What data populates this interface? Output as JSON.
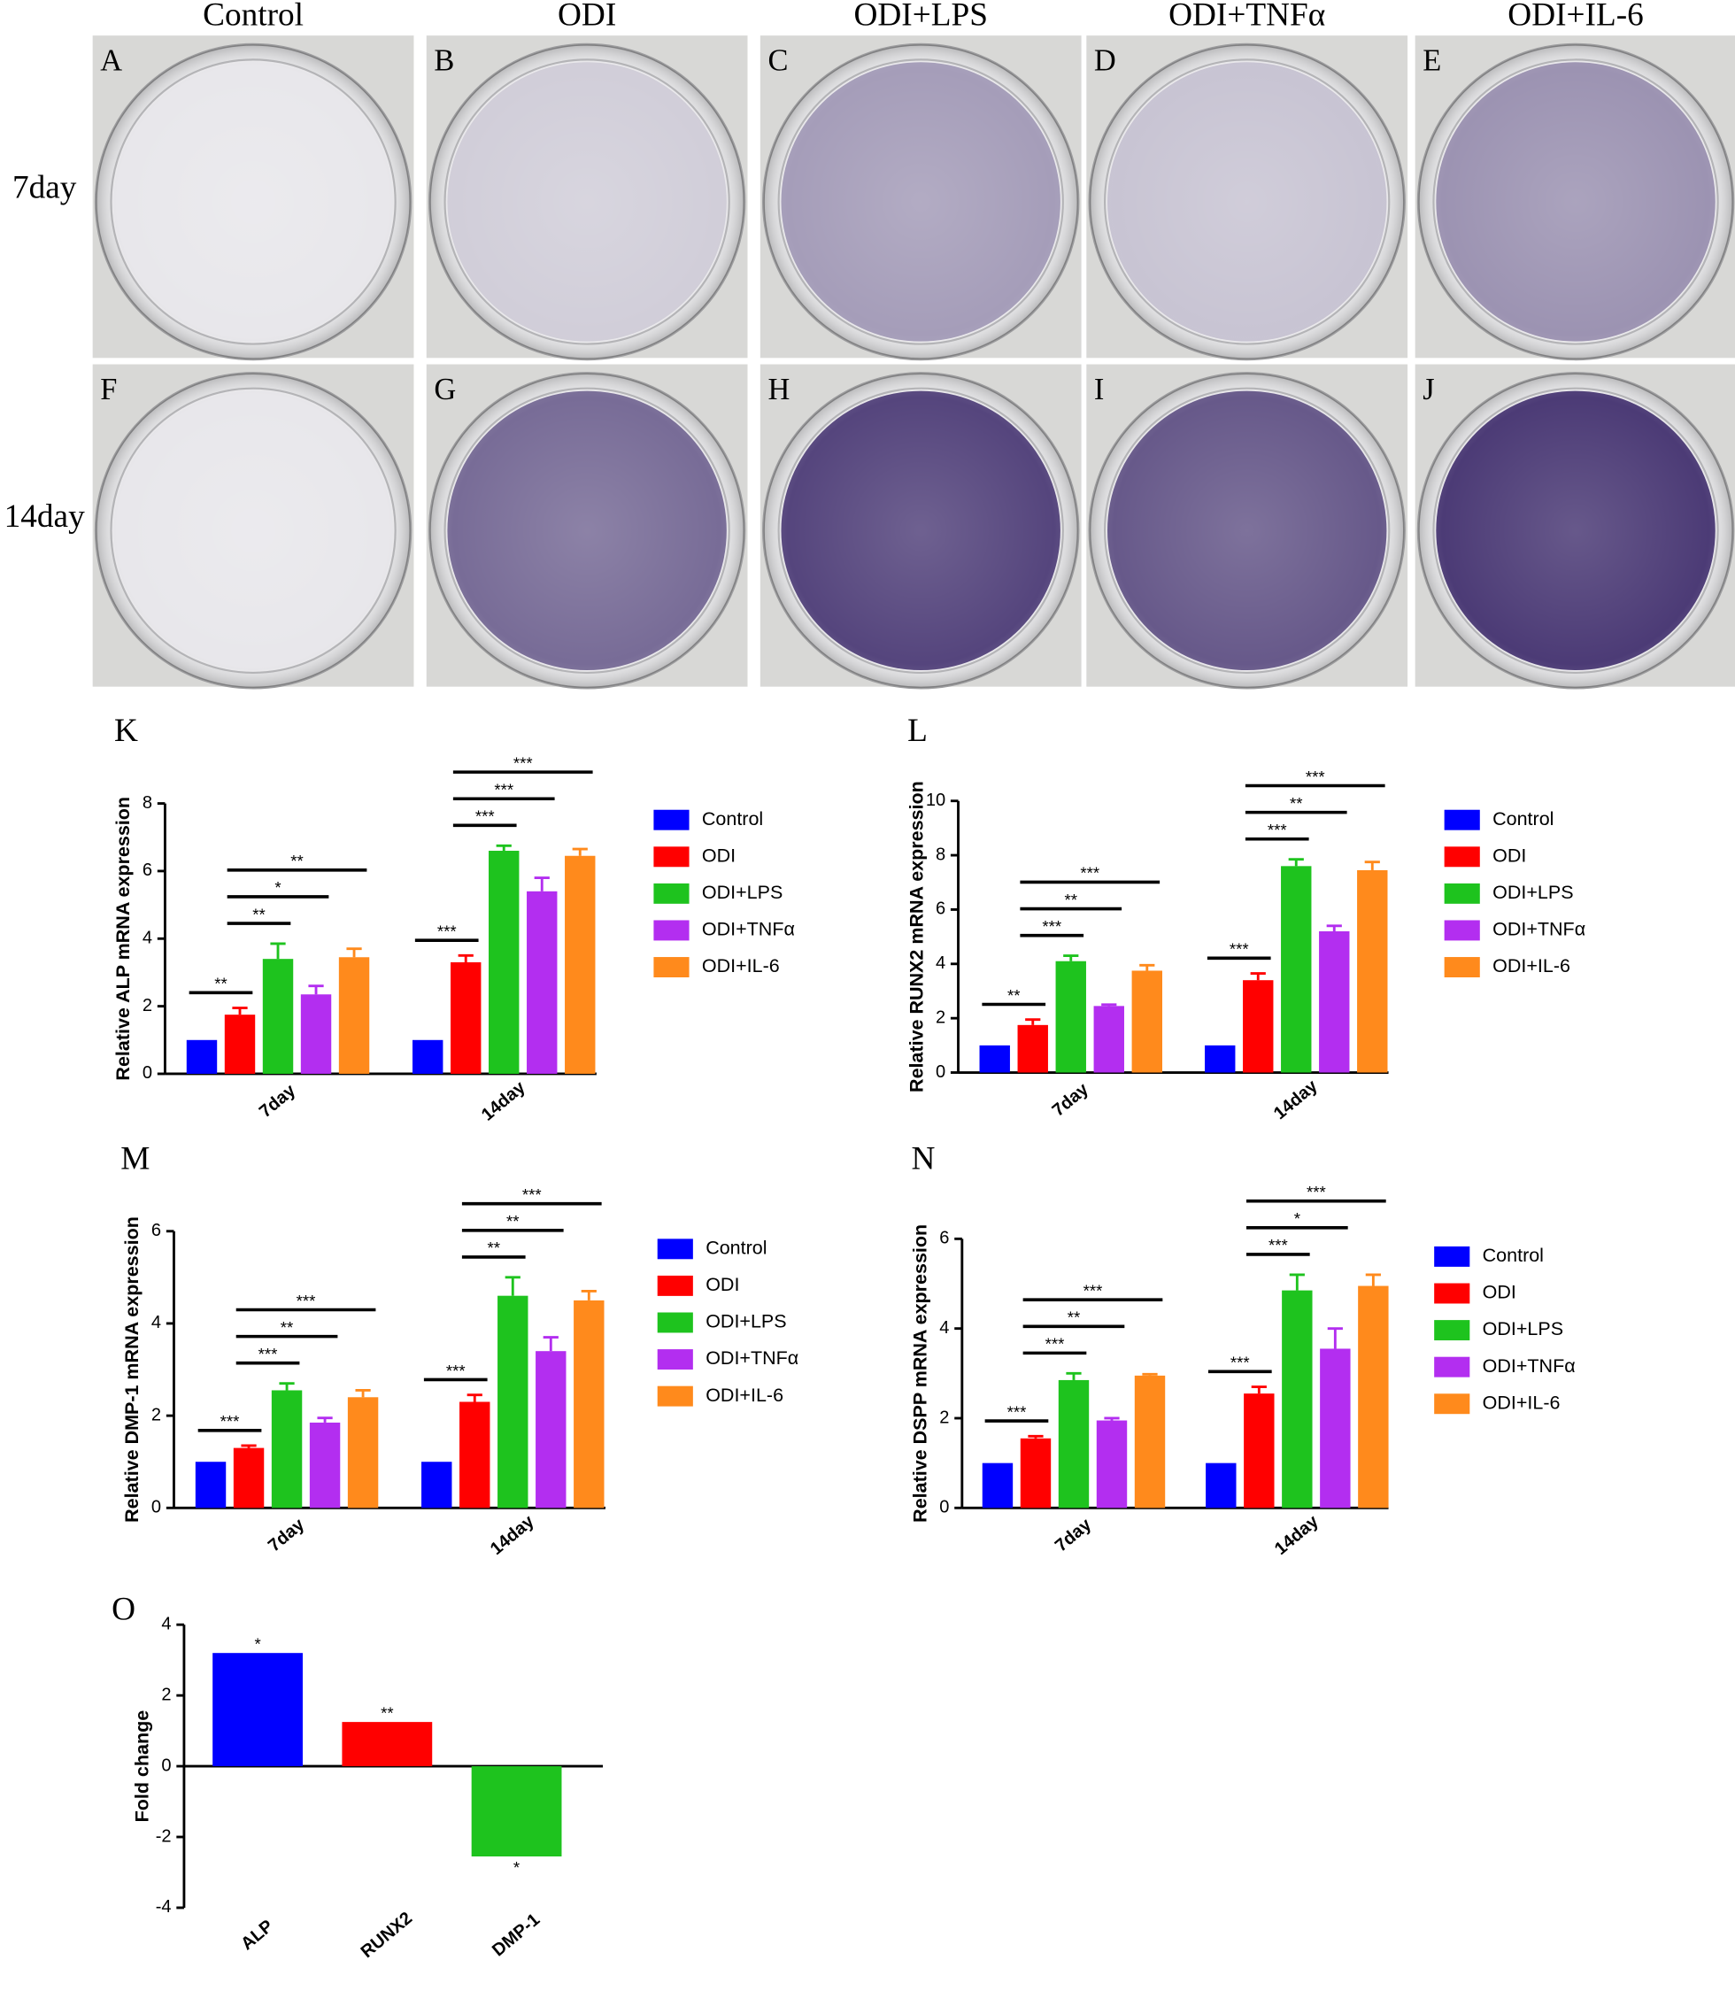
{
  "figure": {
    "columns": [
      "Control",
      "ODI",
      "ODI+LPS",
      "ODI+TNFα",
      "ODI+IL-6"
    ],
    "rows": [
      "7day",
      "14day"
    ],
    "panels": [
      "A",
      "B",
      "C",
      "D",
      "E",
      "F",
      "G",
      "H",
      "I",
      "J"
    ]
  },
  "chart_data": [
    {
      "panel": "K",
      "type": "bar",
      "ylabel": "Relative ALP mRNA expression",
      "categories": [
        "7day",
        "14day"
      ],
      "ylim": [
        0,
        8
      ],
      "yticks": [
        0,
        2,
        4,
        6,
        8
      ],
      "series": [
        {
          "name": "Control",
          "color": "#0000ff",
          "values": [
            1.0,
            1.0
          ],
          "errors": [
            0,
            0
          ]
        },
        {
          "name": "ODI",
          "color": "#ff0000",
          "values": [
            1.75,
            3.3
          ],
          "errors": [
            0.2,
            0.2
          ]
        },
        {
          "name": "ODI+LPS",
          "color": "#1ec31e",
          "values": [
            3.4,
            6.6
          ],
          "errors": [
            0.45,
            0.15
          ]
        },
        {
          "name": "ODI+TNFα",
          "color": "#b32ef0",
          "values": [
            2.35,
            5.4
          ],
          "errors": [
            0.25,
            0.4
          ]
        },
        {
          "name": "ODI+IL-6",
          "color": "#ff8a1c",
          "values": [
            3.45,
            6.45
          ],
          "errors": [
            0.25,
            0.2
          ]
        }
      ],
      "significance": [
        {
          "category": 0,
          "from": 0,
          "to": 1,
          "text": "**"
        },
        {
          "category": 0,
          "from": 1,
          "to": 2,
          "text": "**"
        },
        {
          "category": 0,
          "from": 1,
          "to": 3,
          "text": "*"
        },
        {
          "category": 0,
          "from": 1,
          "to": 4,
          "text": "**"
        },
        {
          "category": 1,
          "from": 0,
          "to": 1,
          "text": "***"
        },
        {
          "category": 1,
          "from": 1,
          "to": 2,
          "text": "***"
        },
        {
          "category": 1,
          "from": 1,
          "to": 3,
          "text": "***"
        },
        {
          "category": 1,
          "from": 1,
          "to": 4,
          "text": "***"
        }
      ]
    },
    {
      "panel": "L",
      "type": "bar",
      "ylabel": "Relative RUNX2 mRNA expression",
      "categories": [
        "7day",
        "14day"
      ],
      "ylim": [
        0,
        10
      ],
      "yticks": [
        0,
        2,
        4,
        6,
        8,
        10
      ],
      "series": [
        {
          "name": "Control",
          "color": "#0000ff",
          "values": [
            1.0,
            1.0
          ],
          "errors": [
            0,
            0
          ]
        },
        {
          "name": "ODI",
          "color": "#ff0000",
          "values": [
            1.75,
            3.4
          ],
          "errors": [
            0.2,
            0.25
          ]
        },
        {
          "name": "ODI+LPS",
          "color": "#1ec31e",
          "values": [
            4.1,
            7.6
          ],
          "errors": [
            0.2,
            0.25
          ]
        },
        {
          "name": "ODI+TNFα",
          "color": "#b32ef0",
          "values": [
            2.45,
            5.2
          ],
          "errors": [
            0.05,
            0.2
          ]
        },
        {
          "name": "ODI+IL-6",
          "color": "#ff8a1c",
          "values": [
            3.75,
            7.45
          ],
          "errors": [
            0.2,
            0.3
          ]
        }
      ],
      "significance": [
        {
          "category": 0,
          "from": 0,
          "to": 1,
          "text": "**"
        },
        {
          "category": 0,
          "from": 1,
          "to": 2,
          "text": "***"
        },
        {
          "category": 0,
          "from": 1,
          "to": 3,
          "text": "**"
        },
        {
          "category": 0,
          "from": 1,
          "to": 4,
          "text": "***"
        },
        {
          "category": 1,
          "from": 0,
          "to": 1,
          "text": "***"
        },
        {
          "category": 1,
          "from": 1,
          "to": 2,
          "text": "***"
        },
        {
          "category": 1,
          "from": 1,
          "to": 3,
          "text": "**"
        },
        {
          "category": 1,
          "from": 1,
          "to": 4,
          "text": "***"
        }
      ]
    },
    {
      "panel": "M",
      "type": "bar",
      "ylabel": "Relative DMP-1 mRNA expression",
      "categories": [
        "7day",
        "14day"
      ],
      "ylim": [
        0,
        6
      ],
      "yticks": [
        0,
        2,
        4,
        6
      ],
      "series": [
        {
          "name": "Control",
          "color": "#0000ff",
          "values": [
            1.0,
            1.0
          ],
          "errors": [
            0,
            0
          ]
        },
        {
          "name": "ODI",
          "color": "#ff0000",
          "values": [
            1.3,
            2.3
          ],
          "errors": [
            0.05,
            0.15
          ]
        },
        {
          "name": "ODI+LPS",
          "color": "#1ec31e",
          "values": [
            2.55,
            4.6
          ],
          "errors": [
            0.15,
            0.4
          ]
        },
        {
          "name": "ODI+TNFα",
          "color": "#b32ef0",
          "values": [
            1.85,
            3.4
          ],
          "errors": [
            0.1,
            0.3
          ]
        },
        {
          "name": "ODI+IL-6",
          "color": "#ff8a1c",
          "values": [
            2.4,
            4.5
          ],
          "errors": [
            0.15,
            0.2
          ]
        }
      ],
      "significance": [
        {
          "category": 0,
          "from": 0,
          "to": 1,
          "text": "***"
        },
        {
          "category": 0,
          "from": 1,
          "to": 2,
          "text": "***"
        },
        {
          "category": 0,
          "from": 1,
          "to": 3,
          "text": "**"
        },
        {
          "category": 0,
          "from": 1,
          "to": 4,
          "text": "***"
        },
        {
          "category": 1,
          "from": 0,
          "to": 1,
          "text": "***"
        },
        {
          "category": 1,
          "from": 1,
          "to": 2,
          "text": "**"
        },
        {
          "category": 1,
          "from": 1,
          "to": 3,
          "text": "**"
        },
        {
          "category": 1,
          "from": 1,
          "to": 4,
          "text": "***"
        }
      ]
    },
    {
      "panel": "N",
      "type": "bar",
      "ylabel": "Relative DSPP mRNA expression",
      "categories": [
        "7day",
        "14day"
      ],
      "ylim": [
        0,
        6
      ],
      "yticks": [
        0,
        2,
        4,
        6
      ],
      "series": [
        {
          "name": "Control",
          "color": "#0000ff",
          "values": [
            1.0,
            1.0
          ],
          "errors": [
            0,
            0
          ]
        },
        {
          "name": "ODI",
          "color": "#ff0000",
          "values": [
            1.55,
            2.55
          ],
          "errors": [
            0.05,
            0.15
          ]
        },
        {
          "name": "ODI+LPS",
          "color": "#1ec31e",
          "values": [
            2.85,
            4.85
          ],
          "errors": [
            0.15,
            0.35
          ]
        },
        {
          "name": "ODI+TNFα",
          "color": "#b32ef0",
          "values": [
            1.95,
            3.55
          ],
          "errors": [
            0.05,
            0.45
          ]
        },
        {
          "name": "ODI+IL-6",
          "color": "#ff8a1c",
          "values": [
            2.95,
            4.95
          ],
          "errors": [
            0.03,
            0.25
          ]
        }
      ],
      "significance": [
        {
          "category": 0,
          "from": 0,
          "to": 1,
          "text": "***"
        },
        {
          "category": 0,
          "from": 1,
          "to": 2,
          "text": "***"
        },
        {
          "category": 0,
          "from": 1,
          "to": 3,
          "text": "**"
        },
        {
          "category": 0,
          "from": 1,
          "to": 4,
          "text": "***"
        },
        {
          "category": 1,
          "from": 0,
          "to": 1,
          "text": "***"
        },
        {
          "category": 1,
          "from": 1,
          "to": 2,
          "text": "***"
        },
        {
          "category": 1,
          "from": 1,
          "to": 3,
          "text": "*"
        },
        {
          "category": 1,
          "from": 1,
          "to": 4,
          "text": "***"
        }
      ]
    },
    {
      "panel": "O",
      "type": "bar",
      "ylabel": "Fold change",
      "categories": [
        "ALP",
        "RUNX2",
        "DMP-1"
      ],
      "values": [
        3.2,
        1.25,
        -2.55
      ],
      "colors": [
        "#0000ff",
        "#ff0000",
        "#1ec31e"
      ],
      "significance": [
        "*",
        "**",
        "*"
      ],
      "ylim": [
        -4,
        4
      ],
      "yticks": [
        -4,
        -2,
        0,
        2,
        4
      ]
    }
  ]
}
